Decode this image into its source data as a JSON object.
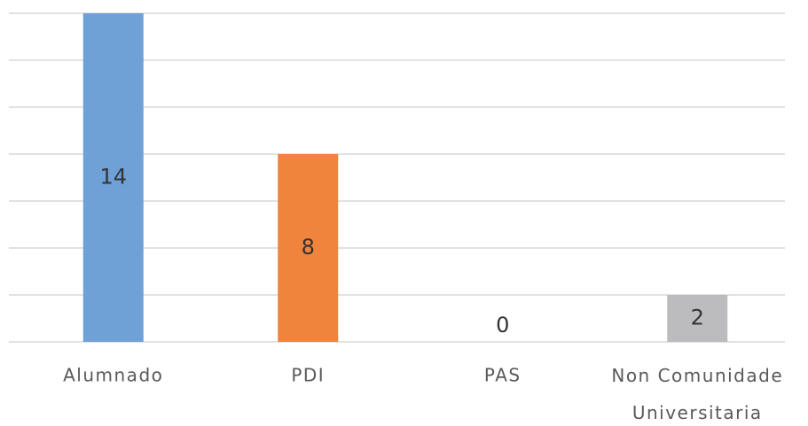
{
  "chart_data": {
    "type": "bar",
    "categories": [
      "Alumnado",
      "PDI",
      "PAS",
      "Non Comunidade Universitaria"
    ],
    "values": [
      14,
      8,
      0,
      2
    ],
    "colors": [
      "#6fa1d6",
      "#f0843c",
      "#a5a5a5",
      "#bcbcbe"
    ],
    "ylim": [
      0,
      14
    ],
    "yticks": [
      0,
      2,
      4,
      6,
      8,
      10,
      12,
      14
    ],
    "grid": true
  }
}
